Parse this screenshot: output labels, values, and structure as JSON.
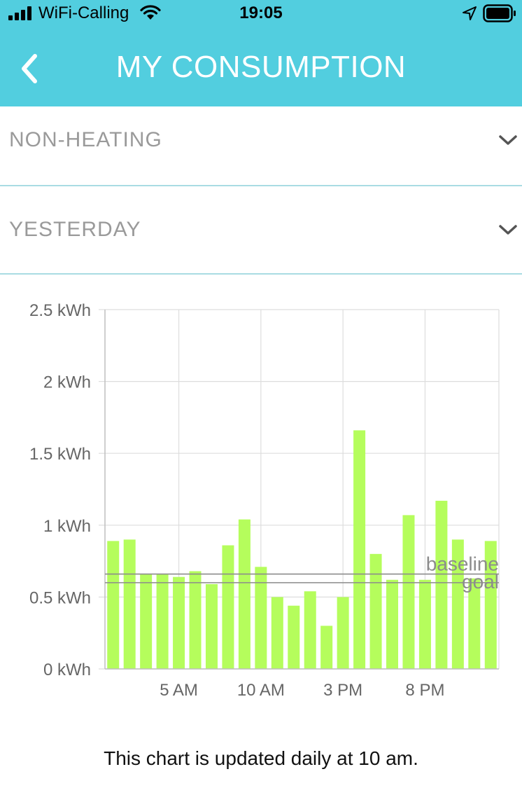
{
  "status_bar": {
    "carrier": "WiFi-Calling",
    "time": "19:05"
  },
  "header": {
    "title": "MY CONSUMPTION",
    "back_icon": "chevron-left-icon"
  },
  "filters": {
    "category": {
      "selected": "NON-HEATING"
    },
    "period": {
      "selected": "YESTERDAY"
    }
  },
  "colors": {
    "header_bg": "#52cedf",
    "bar_fill": "#b5fd5c",
    "grid": "#dddddd",
    "reference_line": "#8c8c8c",
    "label_text": "#8c8c8c"
  },
  "chart_data": {
    "type": "bar",
    "unit": "kWh",
    "x": [
      1,
      2,
      3,
      4,
      5,
      6,
      7,
      8,
      9,
      10,
      11,
      12,
      13,
      14,
      15,
      16,
      17,
      18,
      19,
      20,
      21,
      22,
      23,
      24
    ],
    "values": [
      0.89,
      0.9,
      0.66,
      0.66,
      0.64,
      0.68,
      0.59,
      0.86,
      1.04,
      0.71,
      0.5,
      0.44,
      0.54,
      0.3,
      0.5,
      1.66,
      0.8,
      0.62,
      1.07,
      0.62,
      1.17,
      0.9,
      0.63,
      0.89
    ],
    "ylim": [
      0,
      2.5
    ],
    "y_ticks": [
      {
        "value": 0,
        "label": "0 kWh"
      },
      {
        "value": 0.5,
        "label": "0.5 kWh"
      },
      {
        "value": 1,
        "label": "1 kWh"
      },
      {
        "value": 1.5,
        "label": "1.5 kWh"
      },
      {
        "value": 2,
        "label": "2 kWh"
      },
      {
        "value": 2.5,
        "label": "2.5 kWh"
      }
    ],
    "x_ticks": [
      {
        "value": 5,
        "label": "5 AM"
      },
      {
        "value": 10,
        "label": "10 AM"
      },
      {
        "value": 15,
        "label": "3 PM"
      },
      {
        "value": 20,
        "label": "8 PM"
      }
    ],
    "reference_lines": [
      {
        "name": "baseline",
        "value": 0.66
      },
      {
        "name": "goal",
        "value": 0.6
      }
    ],
    "grid": true
  },
  "footer": {
    "note": "This chart is updated daily at 10 am."
  }
}
